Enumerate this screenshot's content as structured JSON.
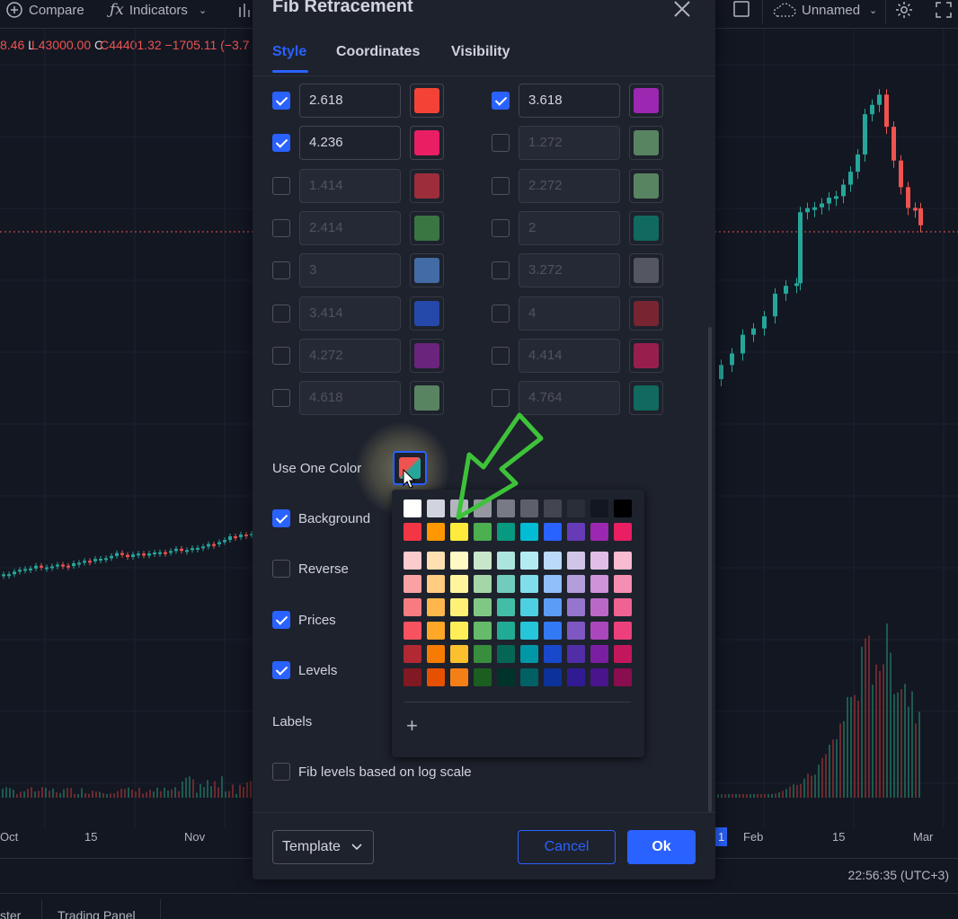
{
  "toolbar": {
    "compare_label": "Compare",
    "indicators_label": "Indicators",
    "layout_name": "Unnamed"
  },
  "ohlc_text": {
    "prefix": "8.46",
    "low": "L43000.00",
    "close": "C44401.32",
    "change": "−1705.11 (−3.7"
  },
  "xaxis_labels": [
    "Oct",
    "15",
    "Nov",
    "1",
    "Feb",
    "15",
    "Mar"
  ],
  "status": {
    "clock": "22:56:35 (UTC+3)"
  },
  "bottom_tabs": [
    "ster",
    "Trading Panel"
  ],
  "dialog": {
    "title": "Fib Retracement",
    "tabs": [
      {
        "label": "Style",
        "active": true
      },
      {
        "label": "Coordinates",
        "active": false
      },
      {
        "label": "Visibility",
        "active": false
      }
    ],
    "levels_left": [
      {
        "value": "2.618",
        "checked": true,
        "color": "#f44336"
      },
      {
        "value": "4.236",
        "checked": true,
        "color": "#e91e63"
      },
      {
        "value": "1.414",
        "checked": false,
        "color": "#f23645"
      },
      {
        "value": "2.414",
        "checked": false,
        "color": "#4caf50"
      },
      {
        "value": "3",
        "checked": false,
        "color": "#5b9cf6"
      },
      {
        "value": "3.414",
        "checked": false,
        "color": "#2962ff"
      },
      {
        "value": "4.272",
        "checked": false,
        "color": "#9c27b0"
      },
      {
        "value": "4.618",
        "checked": false,
        "color": "#81c784"
      }
    ],
    "levels_right": [
      {
        "value": "3.618",
        "checked": true,
        "color": "#9c27b0"
      },
      {
        "value": "1.272",
        "checked": false,
        "color": "#81c784"
      },
      {
        "value": "2.272",
        "checked": false,
        "color": "#81c784"
      },
      {
        "value": "2",
        "checked": false,
        "color": "#089981"
      },
      {
        "value": "3.272",
        "checked": false,
        "color": "#787b86"
      },
      {
        "value": "4",
        "checked": false,
        "color": "#b22833"
      },
      {
        "value": "4.414",
        "checked": false,
        "color": "#e91e63"
      },
      {
        "value": "4.764",
        "checked": false,
        "color": "#089981"
      }
    ],
    "use_one_color_label": "Use One Color",
    "options": [
      {
        "label": "Background",
        "checked": true
      },
      {
        "label": "Reverse",
        "checked": false
      },
      {
        "label": "Prices",
        "checked": true
      },
      {
        "label": "Levels",
        "checked": true
      }
    ],
    "labels_label": "Labels",
    "log_scale_label": "Fib levels based on log scale",
    "log_scale_checked": false,
    "template_label": "Template",
    "cancel_label": "Cancel",
    "ok_label": "Ok"
  },
  "palette": {
    "grays": [
      "#ffffff",
      "#d1d4dc",
      "#b2b5be",
      "#9598a1",
      "#787b86",
      "#5d606b",
      "#434651",
      "#2a2e39",
      "#131722",
      "#000000"
    ],
    "base": [
      "#f23645",
      "#ff9800",
      "#ffeb3b",
      "#4caf50",
      "#089981",
      "#00bcd4",
      "#2962ff",
      "#673ab7",
      "#9c27b0",
      "#e91e63"
    ],
    "shades": [
      [
        "#fccbcd",
        "#ffe0b2",
        "#fff9c4",
        "#c8e6c9",
        "#ace5dc",
        "#b2ebf2",
        "#bbd9fb",
        "#d1c4e9",
        "#e1bee7",
        "#f8bbd0"
      ],
      [
        "#faa1a4",
        "#ffcc80",
        "#fff59d",
        "#a5d6a7",
        "#70ccbd",
        "#80deea",
        "#90bff9",
        "#b39ddb",
        "#ce93d8",
        "#f48fb1"
      ],
      [
        "#f77c80",
        "#ffb74d",
        "#fff176",
        "#81c784",
        "#42bda8",
        "#4dd0e1",
        "#5b9cf6",
        "#9575cd",
        "#ba68c8",
        "#f06292"
      ],
      [
        "#f7525f",
        "#ffa726",
        "#ffee58",
        "#66bb6a",
        "#22ab94",
        "#26c6da",
        "#3179f5",
        "#7e57c2",
        "#ab47bc",
        "#ec407a"
      ],
      [
        "#b22833",
        "#f57c00",
        "#fbc02d",
        "#388e3c",
        "#056656",
        "#0097a7",
        "#1848cc",
        "#512da8",
        "#7b1fa2",
        "#c2185b"
      ],
      [
        "#801922",
        "#e65100",
        "#f57f17",
        "#1b5e20",
        "#00332a",
        "#006064",
        "#0c3299",
        "#311b92",
        "#4a148c",
        "#880e4f"
      ]
    ]
  }
}
